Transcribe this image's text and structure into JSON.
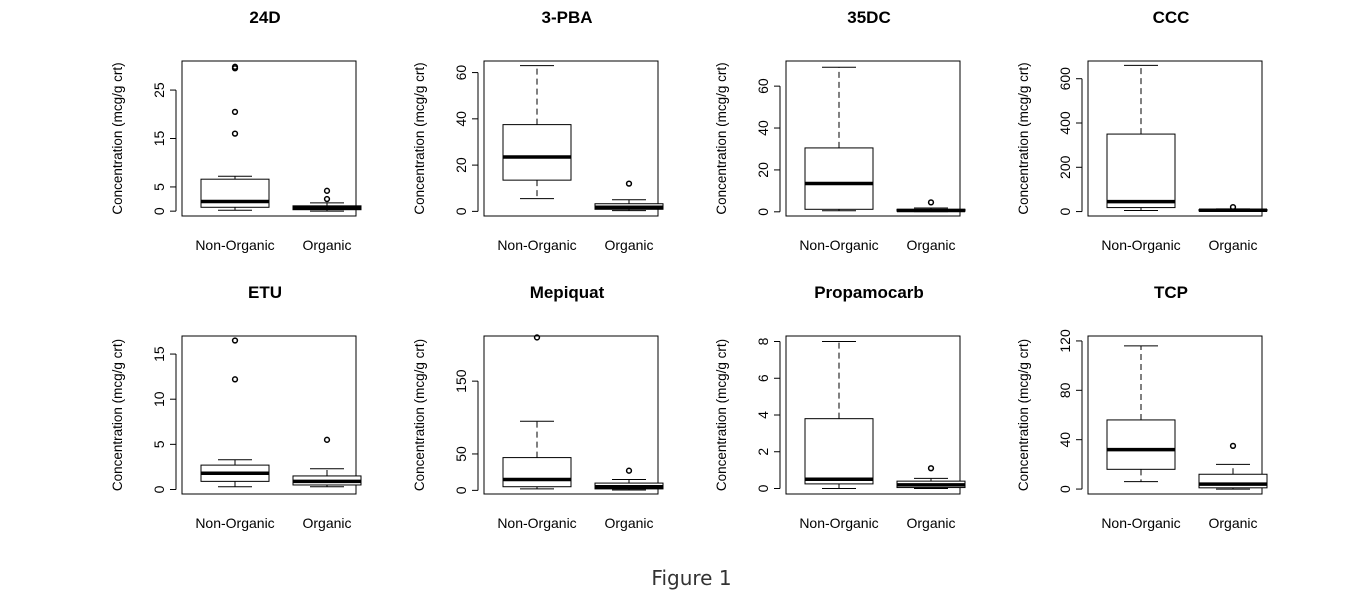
{
  "figure_caption": "Figure 1",
  "chart_data": [
    {
      "type": "box",
      "title": "24D",
      "ylabel": "Concentration (mcg/g crt)",
      "categories": [
        "Non-Organic",
        "Organic"
      ],
      "yticks": [
        0,
        5,
        15,
        25
      ],
      "ylim": [
        -1,
        31
      ],
      "boxes": [
        {
          "category": "Non-Organic",
          "lower_whisker": 0.2,
          "q1": 0.8,
          "median": 2.0,
          "q3": 6.6,
          "upper_whisker": 7.2,
          "outliers": [
            16,
            20.5,
            29.5,
            29.8
          ]
        },
        {
          "category": "Organic",
          "lower_whisker": 0.0,
          "q1": 0.3,
          "median": 0.7,
          "q3": 1.1,
          "upper_whisker": 1.7,
          "outliers": [
            2.5,
            4.2
          ]
        }
      ]
    },
    {
      "type": "box",
      "title": "3-PBA",
      "ylabel": "Concentration (mcg/g crt)",
      "categories": [
        "Non-Organic",
        "Organic"
      ],
      "yticks": [
        0,
        20,
        40,
        60
      ],
      "ylim": [
        -2,
        65
      ],
      "boxes": [
        {
          "category": "Non-Organic",
          "lower_whisker": 5.5,
          "q1": 13.5,
          "median": 23.5,
          "q3": 37.5,
          "upper_whisker": 63,
          "outliers": []
        },
        {
          "category": "Organic",
          "lower_whisker": 0.3,
          "q1": 0.9,
          "median": 1.8,
          "q3": 3.3,
          "upper_whisker": 5.0,
          "outliers": [
            12
          ]
        }
      ]
    },
    {
      "type": "box",
      "title": "35DC",
      "ylabel": "Concentration (mcg/g crt)",
      "categories": [
        "Non-Organic",
        "Organic"
      ],
      "yticks": [
        0,
        20,
        40,
        60
      ],
      "ylim": [
        -2,
        72
      ],
      "boxes": [
        {
          "category": "Non-Organic",
          "lower_whisker": 0.5,
          "q1": 1.2,
          "median": 13.5,
          "q3": 30.5,
          "upper_whisker": 69,
          "outliers": []
        },
        {
          "category": "Organic",
          "lower_whisker": 0.1,
          "q1": 0.3,
          "median": 0.6,
          "q3": 1.2,
          "upper_whisker": 1.8,
          "outliers": [
            4.5
          ]
        }
      ]
    },
    {
      "type": "box",
      "title": "CCC",
      "ylabel": "Concentration (mcg/g crt)",
      "categories": [
        "Non-Organic",
        "Organic"
      ],
      "yticks": [
        0,
        200,
        400,
        600
      ],
      "ylim": [
        -20,
        680
      ],
      "boxes": [
        {
          "category": "Non-Organic",
          "lower_whisker": 5,
          "q1": 18,
          "median": 45,
          "q3": 350,
          "upper_whisker": 660,
          "outliers": []
        },
        {
          "category": "Organic",
          "lower_whisker": 1,
          "q1": 3,
          "median": 6,
          "q3": 9,
          "upper_whisker": 12,
          "outliers": [
            20
          ]
        }
      ]
    },
    {
      "type": "box",
      "title": "ETU",
      "ylabel": "Concentration (mcg/g crt)",
      "categories": [
        "Non-Organic",
        "Organic"
      ],
      "yticks": [
        0,
        5,
        10,
        15
      ],
      "ylim": [
        -0.5,
        17
      ],
      "boxes": [
        {
          "category": "Non-Organic",
          "lower_whisker": 0.3,
          "q1": 0.9,
          "median": 1.8,
          "q3": 2.7,
          "upper_whisker": 3.3,
          "outliers": [
            12.2,
            16.5
          ]
        },
        {
          "category": "Organic",
          "lower_whisker": 0.3,
          "q1": 0.5,
          "median": 0.9,
          "q3": 1.5,
          "upper_whisker": 2.3,
          "outliers": [
            5.5
          ]
        }
      ]
    },
    {
      "type": "box",
      "title": "Mepiquat",
      "ylabel": "Concentration (mcg/g crt)",
      "categories": [
        "Non-Organic",
        "Organic"
      ],
      "yticks": [
        0,
        50,
        150
      ],
      "ylim": [
        -5,
        212
      ],
      "boxes": [
        {
          "category": "Non-Organic",
          "lower_whisker": 2,
          "q1": 5,
          "median": 15,
          "q3": 45,
          "upper_whisker": 95,
          "outliers": [
            210
          ]
        },
        {
          "category": "Organic",
          "lower_whisker": 0.5,
          "q1": 2,
          "median": 5,
          "q3": 10,
          "upper_whisker": 15,
          "outliers": [
            27
          ]
        }
      ]
    },
    {
      "type": "box",
      "title": "Propamocarb",
      "ylabel": "Concentration (mcg/g crt)",
      "categories": [
        "Non-Organic",
        "Organic"
      ],
      "yticks": [
        0,
        2,
        4,
        6,
        8
      ],
      "ylim": [
        -0.3,
        8.3
      ],
      "boxes": [
        {
          "category": "Non-Organic",
          "lower_whisker": 0.0,
          "q1": 0.25,
          "median": 0.5,
          "q3": 3.8,
          "upper_whisker": 8.0,
          "outliers": []
        },
        {
          "category": "Organic",
          "lower_whisker": 0.0,
          "q1": 0.05,
          "median": 0.2,
          "q3": 0.4,
          "upper_whisker": 0.55,
          "outliers": [
            1.1
          ]
        }
      ]
    },
    {
      "type": "box",
      "title": "TCP",
      "ylabel": "Concentration (mcg/g crt)",
      "categories": [
        "Non-Organic",
        "Organic"
      ],
      "yticks": [
        0,
        40,
        80,
        120
      ],
      "ylim": [
        -4,
        124
      ],
      "boxes": [
        {
          "category": "Non-Organic",
          "lower_whisker": 6,
          "q1": 16,
          "median": 32,
          "q3": 56,
          "upper_whisker": 116,
          "outliers": []
        },
        {
          "category": "Organic",
          "lower_whisker": 0,
          "q1": 1,
          "median": 4,
          "q3": 12,
          "upper_whisker": 20,
          "outliers": [
            35
          ]
        }
      ]
    }
  ]
}
